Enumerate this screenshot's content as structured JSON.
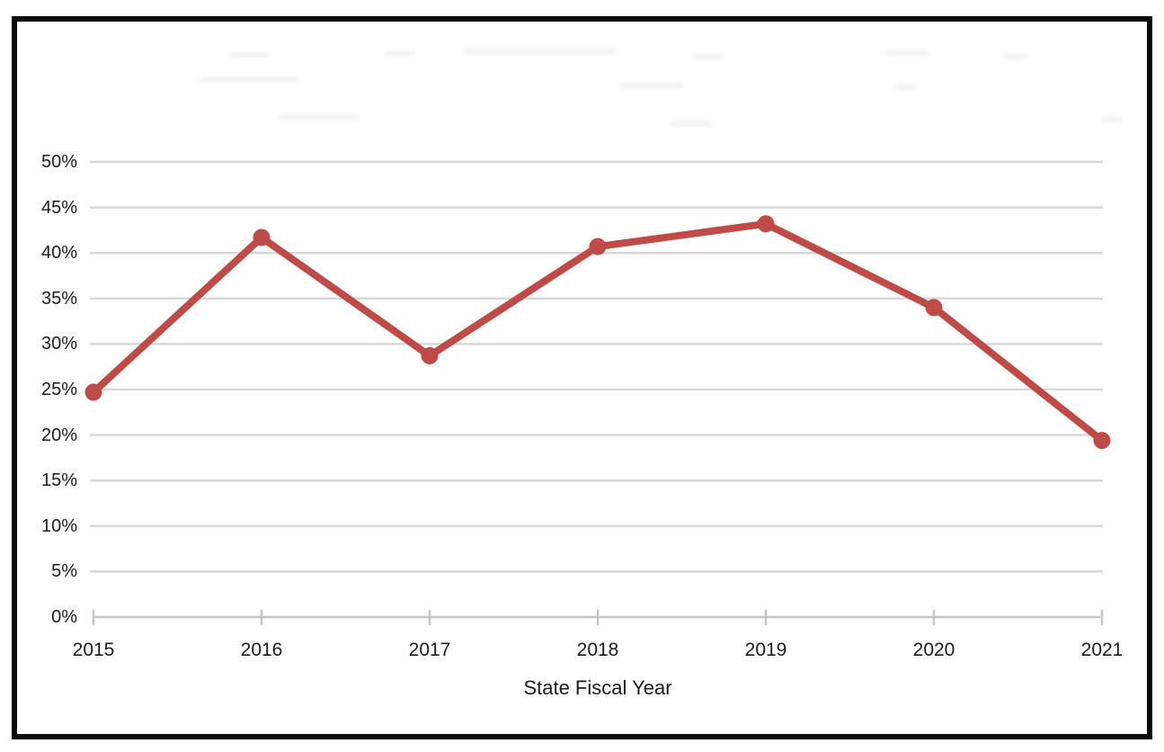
{
  "chart_data": {
    "type": "line",
    "title": "",
    "xlabel": "State Fiscal Year",
    "ylabel": "",
    "categories": [
      "2015",
      "2016",
      "2017",
      "2018",
      "2019",
      "2020",
      "2021"
    ],
    "series": [
      {
        "color": "#be4b48",
        "values": [
          24.7,
          41.7,
          28.7,
          40.7,
          43.2,
          34.0,
          19.4
        ]
      }
    ],
    "ylim": [
      0,
      50
    ],
    "ytick_step": 5,
    "ytick_labels": [
      "0%",
      "5%",
      "10%",
      "15%",
      "20%",
      "25%",
      "30%",
      "35%",
      "40%",
      "45%",
      "50%"
    ],
    "grid": true,
    "legend": "none",
    "marker": "circle",
    "gridline_color": "#d8d8d8",
    "axis_color": "#c6c6c6",
    "text_color": "#1c1c1c",
    "frame_border_color": "#0a0a0a"
  }
}
